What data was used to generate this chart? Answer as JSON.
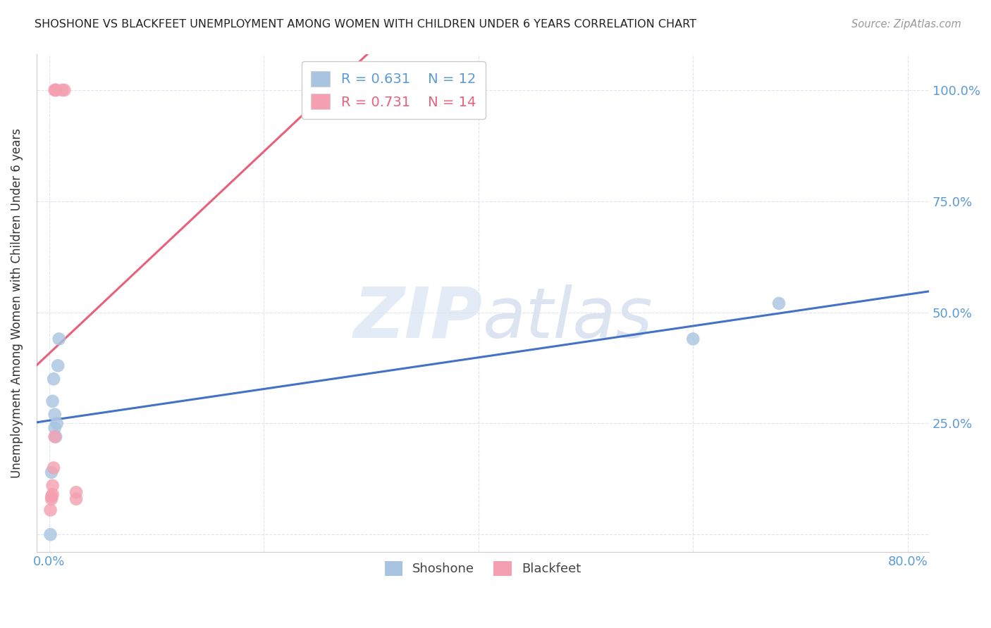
{
  "title": "SHOSHONE VS BLACKFEET UNEMPLOYMENT AMONG WOMEN WITH CHILDREN UNDER 6 YEARS CORRELATION CHART",
  "source": "Source: ZipAtlas.com",
  "ylabel": "Unemployment Among Women with Children Under 6 years",
  "shoshone_label": "Shoshone",
  "blackfeet_label": "Blackfeet",
  "shoshone_R": 0.631,
  "shoshone_N": 12,
  "blackfeet_R": 0.731,
  "blackfeet_N": 14,
  "shoshone_color": "#a8c4e0",
  "blackfeet_color": "#f4a0b0",
  "shoshone_line_color": "#4472c4",
  "blackfeet_line_color": "#e8607a",
  "shoshone_x": [
    0.001,
    0.002,
    0.003,
    0.004,
    0.005,
    0.005,
    0.006,
    0.007,
    0.008,
    0.009,
    0.6,
    0.68
  ],
  "shoshone_y": [
    0.0,
    0.14,
    0.3,
    0.35,
    0.24,
    0.27,
    0.22,
    0.25,
    0.38,
    0.44,
    0.44,
    0.52
  ],
  "blackfeet_x": [
    0.001,
    0.002,
    0.002,
    0.003,
    0.003,
    0.004,
    0.005,
    0.005,
    0.006,
    0.006,
    0.012,
    0.014,
    0.025,
    0.025
  ],
  "blackfeet_y": [
    0.055,
    0.08,
    0.085,
    0.09,
    0.11,
    0.15,
    0.22,
    1.0,
    1.0,
    1.0,
    1.0,
    1.0,
    0.08,
    0.095
  ],
  "xlim": [
    -0.012,
    0.82
  ],
  "ylim": [
    -0.04,
    1.08
  ],
  "xticks": [
    0.0,
    0.2,
    0.4,
    0.6,
    0.8
  ],
  "xticklabels": [
    "0.0%",
    "",
    "",
    "",
    "80.0%"
  ],
  "yticks": [
    0.0,
    0.25,
    0.5,
    0.75,
    1.0
  ],
  "right_yticklabels": [
    "",
    "25.0%",
    "50.0%",
    "75.0%",
    "100.0%"
  ],
  "watermark_zip": "ZIP",
  "watermark_atlas": "atlas",
  "background_color": "#ffffff",
  "grid_color": "#dde3ef"
}
